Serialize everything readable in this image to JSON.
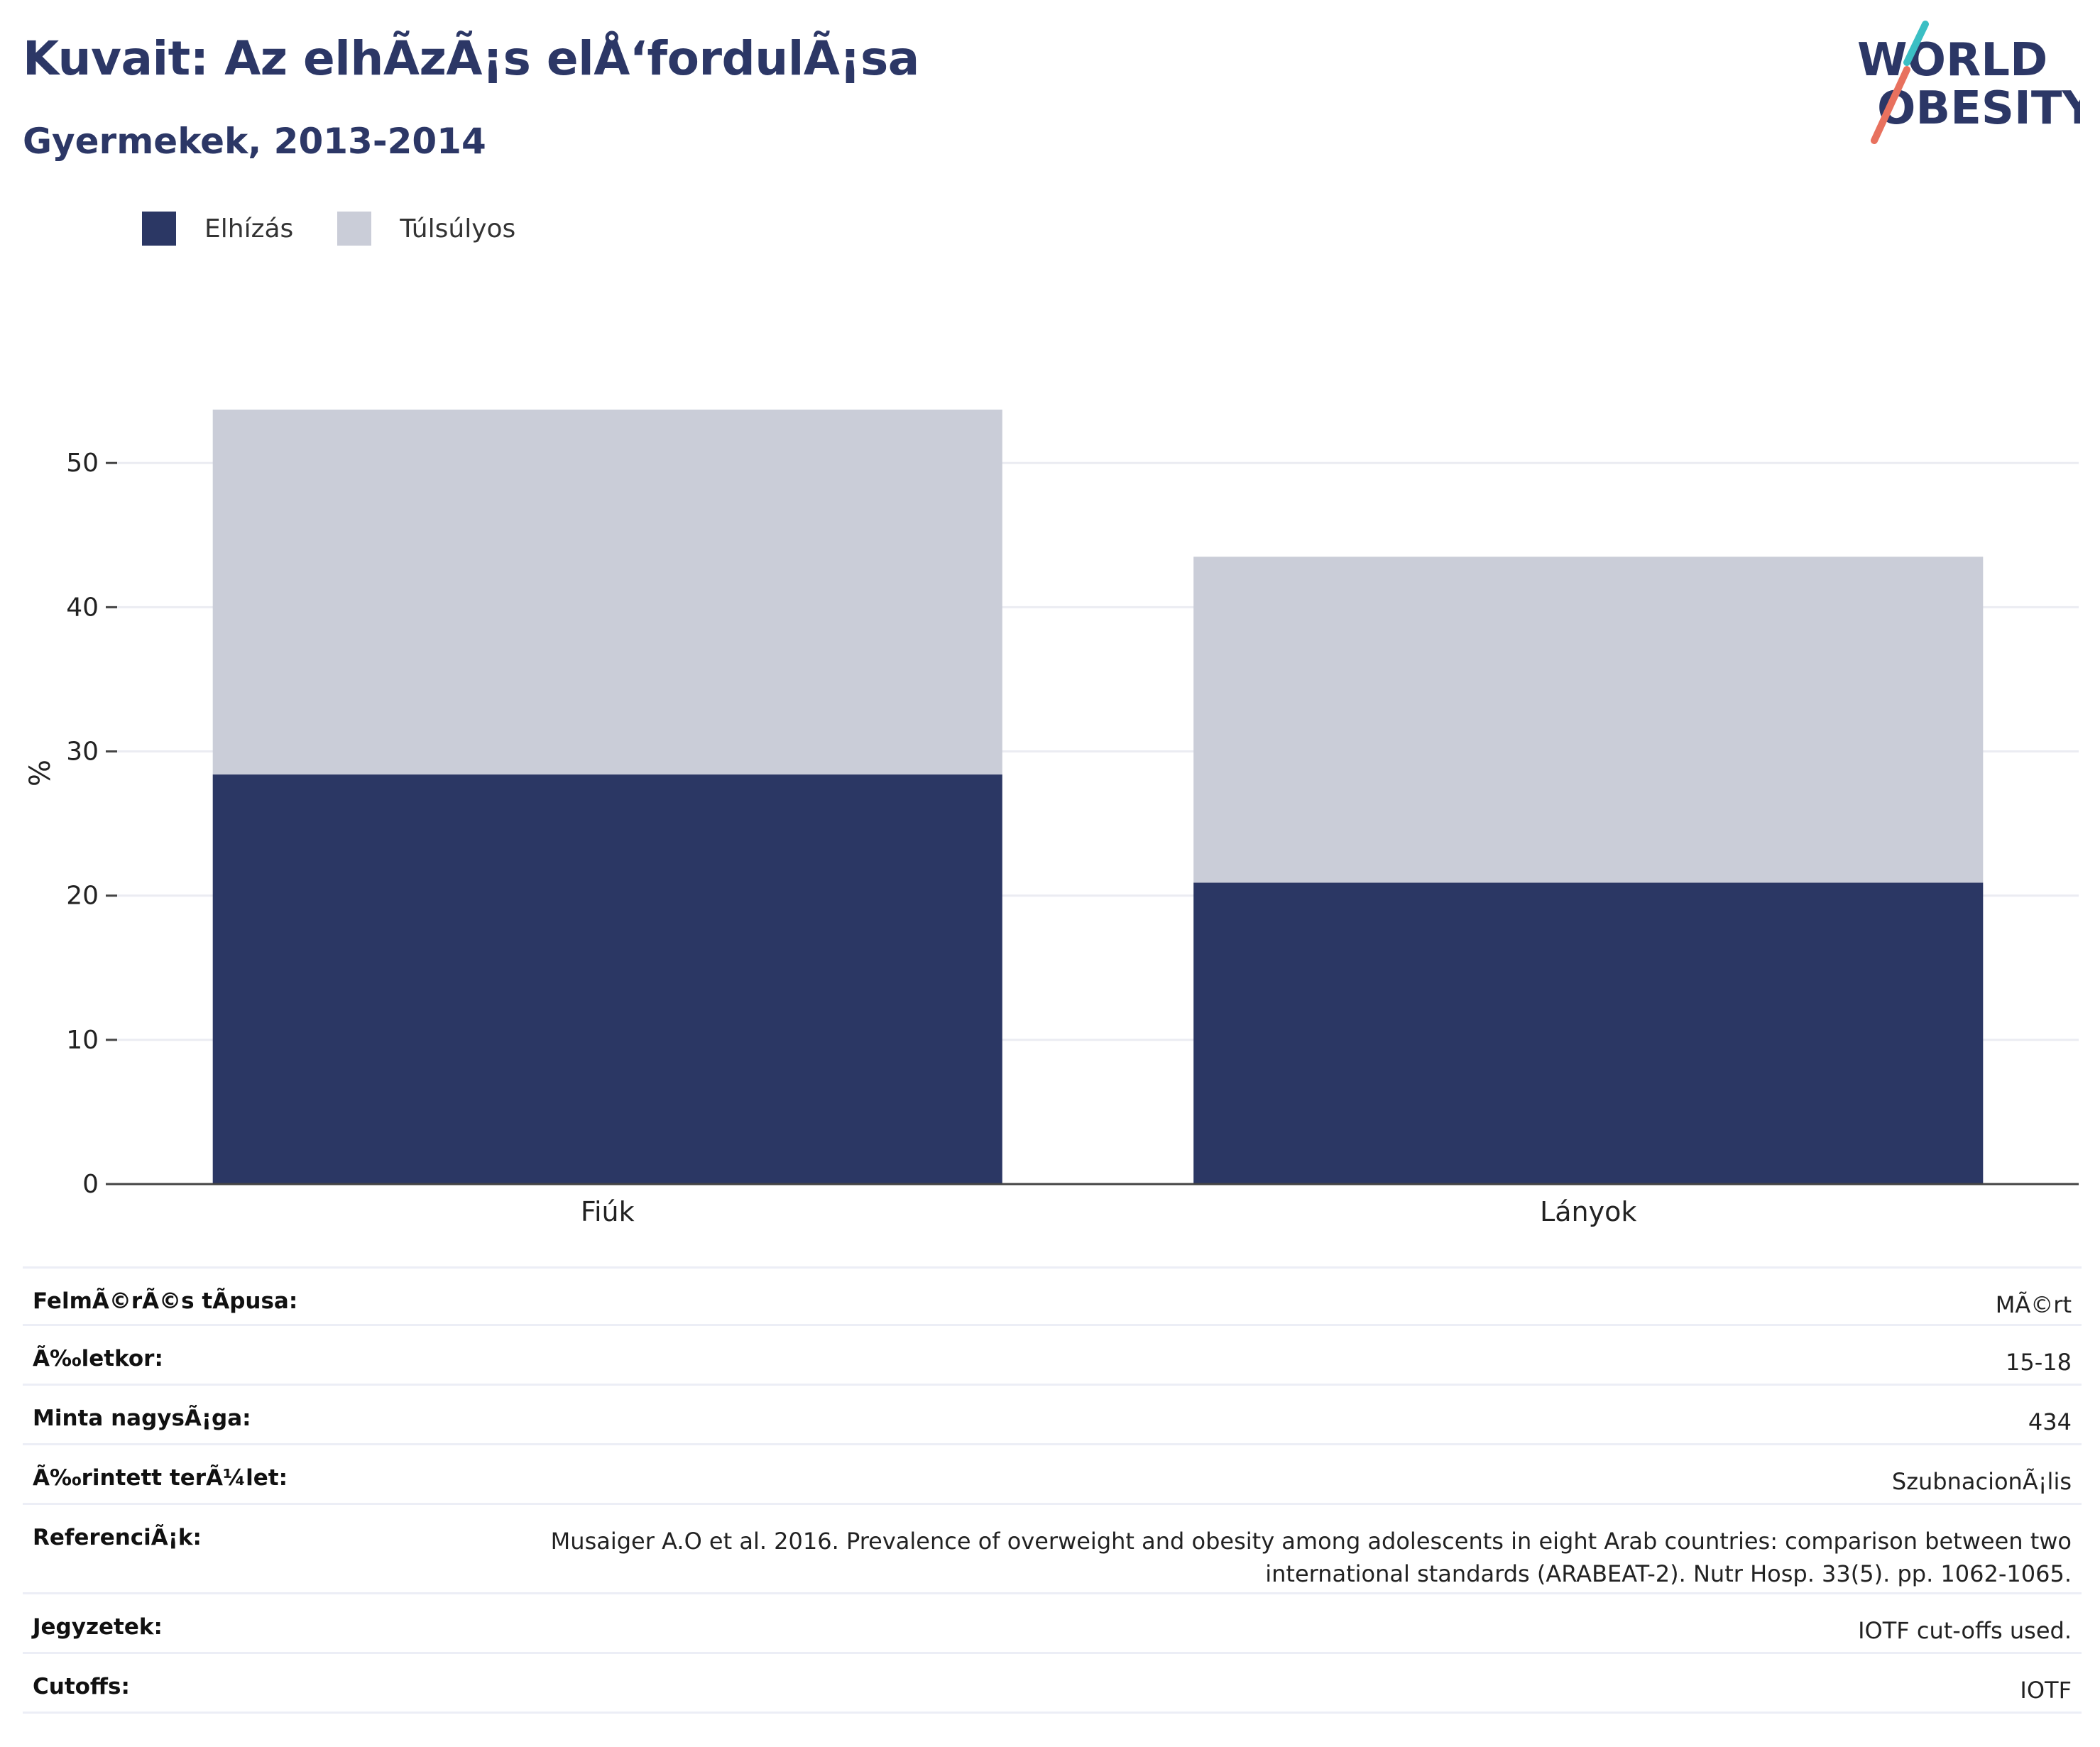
{
  "header": {
    "title": "Kuvait: Az elhÃ­zÃ¡s elÅ‘fordulÃ¡sa",
    "subtitle": "Gyermekek, 2013-2014"
  },
  "logo": {
    "line1": "WORLD",
    "line2": "OBESITY",
    "colors": {
      "text": "#2c3766",
      "slash_teal": "#3bbfc4",
      "slash_coral": "#e8715e"
    }
  },
  "legend": [
    {
      "label": "Elhízás",
      "color": "#2b3764"
    },
    {
      "label": "Túlsúlyos",
      "color": "#cacdd8"
    }
  ],
  "chart_data": {
    "type": "bar",
    "stacked": true,
    "categories": [
      "Fiúk",
      "Lányok"
    ],
    "series": [
      {
        "name": "Elhízás",
        "values": [
          28.4,
          20.9
        ],
        "color": "#2b3764"
      },
      {
        "name": "Túlsúlyos",
        "values": [
          25.3,
          22.6
        ],
        "color": "#cacdd8"
      }
    ],
    "ylabel": "%",
    "ylim": [
      0,
      57
    ],
    "yticks": [
      0,
      10,
      20,
      30,
      40,
      50
    ],
    "grid": true,
    "legend_position": "top-left"
  },
  "info": [
    {
      "label": "FelmÃ©rÃ©s tÃpusa:",
      "value": "MÃ©rt"
    },
    {
      "label": "Ã‰letkor:",
      "value": "15-18"
    },
    {
      "label": "Minta nagysÃ¡ga:",
      "value": "434"
    },
    {
      "label": "Ã‰rintett terÃ¼let:",
      "value": "SzubnacionÃ¡lis"
    },
    {
      "label": "ReferenciÃ¡k:",
      "value": "Musaiger A.O et al. 2016. Prevalence of overweight and obesity among adolescents in eight Arab countries: comparison between two international standards (ARABEAT-2). Nutr Hosp. 33(5). pp. 1062-1065."
    },
    {
      "label": "Jegyzetek:",
      "value": "IOTF cut-offs used."
    },
    {
      "label": "Cutoffs:",
      "value": "IOTF"
    }
  ]
}
